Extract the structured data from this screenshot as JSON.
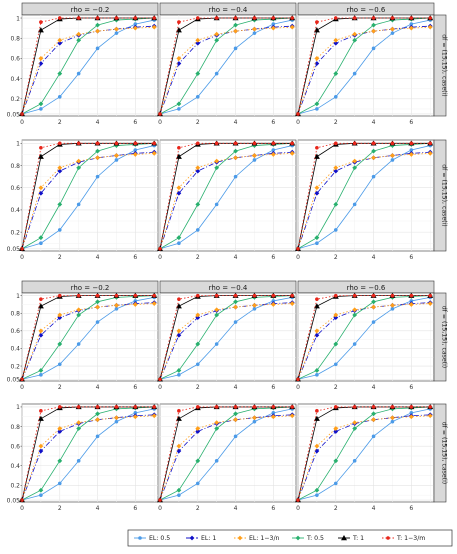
{
  "chart_data": {
    "type": "line",
    "layout": "4 figure blocks, each a 2x3 grid of facets (columns by rho, rows by df), sharing one x axis per block",
    "facet_columns": [
      "rho = −0.2",
      "rho = −0.4",
      "rho = −0.6"
    ],
    "facet_rows": [
      "df = (15,15), case(i)",
      "df = (15,15), case(i)",
      "df = (15,15), case(i)",
      "df = (15,15), case(i)"
    ],
    "xlim": [
      0,
      7.2
    ],
    "ylim": [
      0.03,
      1.03
    ],
    "x_ticks": [
      "0",
      "2",
      "4",
      "6"
    ],
    "y_ticks": [
      "0.05",
      "0.2",
      "0.4",
      "0.6",
      "0.8",
      "1"
    ],
    "x": [
      0,
      1,
      2,
      3,
      4,
      5,
      6,
      7
    ],
    "grid": true,
    "legend_position": "bottom",
    "series": [
      {
        "name": "EL: 0.5",
        "color": "#4c9be8",
        "marker": "circle",
        "dash": "solid",
        "values": [
          0.05,
          0.1,
          0.22,
          0.45,
          0.7,
          0.85,
          0.94,
          0.98
        ]
      },
      {
        "name": "EL: 1",
        "color": "#1010c8",
        "marker": "diamond",
        "dash": "dashdot",
        "values": [
          0.05,
          0.55,
          0.75,
          0.83,
          0.87,
          0.89,
          0.91,
          0.92
        ]
      },
      {
        "name": "EL: 1−3/n",
        "color": "#ff9f1a",
        "marker": "diamond",
        "dash": "dotted",
        "values": [
          0.05,
          0.6,
          0.78,
          0.84,
          0.87,
          0.89,
          0.9,
          0.91
        ]
      },
      {
        "name": "T: 0.5",
        "color": "#28b06e",
        "marker": "diamond",
        "dash": "solid",
        "values": [
          0.05,
          0.15,
          0.45,
          0.78,
          0.93,
          0.98,
          0.99,
          1.0
        ]
      },
      {
        "name": "T: 1",
        "color": "#000000",
        "marker": "triangle",
        "dash": "solid",
        "values": [
          0.05,
          0.88,
          0.99,
          1.0,
          1.0,
          1.0,
          1.0,
          1.0
        ]
      },
      {
        "name": "T: 1−3/m",
        "color": "#e8251a",
        "marker": "circle",
        "dash": "dotted",
        "values": [
          0.05,
          0.96,
          1.0,
          1.0,
          1.0,
          1.0,
          1.0,
          1.0
        ]
      }
    ]
  }
}
